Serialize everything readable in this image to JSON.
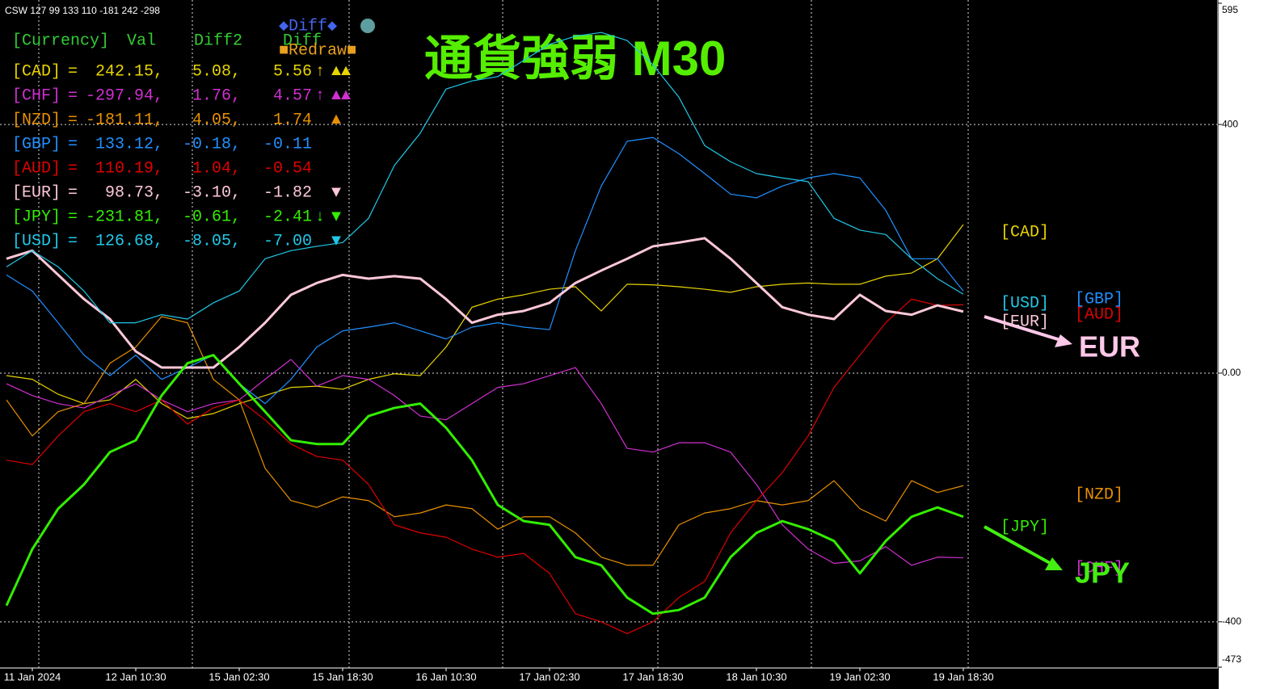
{
  "chart_data": {
    "type": "line",
    "info": "CSW 127 99 133 110 -181 242 -298",
    "title": "通貨強弱 M30",
    "categories": [
      null,
      "11 Jan 2024",
      null,
      null,
      null,
      "12 Jan 10:30",
      null,
      null,
      null,
      "15 Jan 02:30",
      null,
      null,
      null,
      "15 Jan 18:30",
      null,
      null,
      null,
      "16 Jan 10:30",
      null,
      null,
      null,
      "17 Jan 02:30",
      null,
      null,
      null,
      "17 Jan 18:30",
      null,
      null,
      null,
      "18 Jan 10:30",
      null,
      null,
      null,
      "19 Jan 02:30",
      null,
      null,
      null,
      "19 Jan 18:30"
    ],
    "ylim": [
      -473,
      595
    ],
    "yticks": [
      595,
      400,
      {
        "value": 0,
        "label": "0.00"
      },
      -400,
      -473
    ],
    "grid": true,
    "series": [
      {
        "name": "[CAD]",
        "color": "#e8d400",
        "values": [
          -4,
          -10,
          -34,
          -49,
          -43,
          -10,
          -49,
          -73,
          -65,
          -49,
          -36,
          -23,
          -21,
          -26,
          -10,
          -1,
          -4,
          42,
          106,
          119,
          126,
          135,
          139,
          100,
          143,
          142,
          139,
          135,
          130,
          139,
          143,
          145,
          143,
          143,
          156,
          161,
          184,
          239
        ]
      },
      {
        "name": "[CHF]",
        "color": "#d030d0",
        "values": [
          -17,
          -36,
          -49,
          -56,
          -36,
          -17,
          -43,
          -62,
          -49,
          -43,
          -10,
          22,
          -21,
          -4,
          -10,
          -36,
          -69,
          -75,
          -49,
          -23,
          -17,
          -4,
          9,
          -49,
          -121,
          -127,
          -112,
          -112,
          -127,
          -179,
          -244,
          -283,
          -306,
          -302,
          -279,
          -309,
          -296,
          -297
        ]
      },
      {
        "name": "[NZD]",
        "color": "#e89000",
        "values": [
          -43,
          -101,
          -62,
          -49,
          16,
          42,
          91,
          81,
          -10,
          -43,
          -153,
          -205,
          -216,
          -199,
          -205,
          -231,
          -225,
          -212,
          -218,
          -251,
          -231,
          -231,
          -257,
          -296,
          -309,
          -309,
          -244,
          -225,
          -218,
          -205,
          -212,
          -205,
          -173,
          -218,
          -238,
          -173,
          -192,
          -181
        ]
      },
      {
        "name": "[GBP]",
        "color": "#2090ff",
        "values": [
          158,
          132,
          81,
          29,
          -4,
          29,
          -10,
          9,
          29,
          -17,
          -49,
          -10,
          42,
          68,
          74,
          81,
          68,
          55,
          74,
          81,
          74,
          70,
          197,
          301,
          373,
          379,
          353,
          321,
          288,
          282,
          301,
          314,
          321,
          314,
          262,
          184,
          184,
          132
        ]
      },
      {
        "name": "[AUD]",
        "color": "#e00000",
        "values": [
          -140,
          -147,
          -101,
          -62,
          -49,
          -62,
          -43,
          -82,
          -56,
          -43,
          -75,
          -114,
          -134,
          -140,
          -179,
          -244,
          -257,
          -264,
          -283,
          -296,
          -290,
          -322,
          -387,
          -400,
          -419,
          -400,
          -361,
          -335,
          -257,
          -205,
          -160,
          -101,
          -23,
          29,
          81,
          119,
          109,
          110
        ]
      },
      {
        "name": "[EUR]",
        "color": "#ffc8d8",
        "values": [
          184,
          197,
          158,
          119,
          87,
          35,
          9,
          9,
          9,
          42,
          81,
          126,
          145,
          158,
          152,
          156,
          152,
          119,
          81,
          94,
          100,
          113,
          145,
          165,
          184,
          204,
          210,
          217,
          184,
          145,
          106,
          94,
          87,
          126,
          100,
          94,
          109,
          99
        ]
      },
      {
        "name": "[JPY]",
        "color": "#33ee00",
        "values": [
          -374,
          -283,
          -218,
          -179,
          -127,
          -108,
          -36,
          16,
          29,
          -17,
          -62,
          -108,
          -114,
          -114,
          -69,
          -56,
          -49,
          -88,
          -140,
          -212,
          -238,
          -244,
          -296,
          -309,
          -361,
          -387,
          -381,
          -361,
          -296,
          -257,
          -238,
          -251,
          -270,
          -322,
          -270,
          -231,
          -216,
          -231
        ]
      },
      {
        "name": "[USD]",
        "color": "#20c8e8",
        "values": [
          171,
          197,
          171,
          132,
          81,
          81,
          94,
          87,
          113,
          132,
          184,
          197,
          204,
          210,
          249,
          334,
          386,
          457,
          470,
          477,
          503,
          529,
          542,
          548,
          535,
          496,
          444,
          366,
          340,
          321,
          314,
          308,
          249,
          230,
          223,
          184,
          152,
          127
        ]
      }
    ],
    "annotations": [
      "EUR",
      "JPY"
    ]
  },
  "panel": {
    "header": [
      "[Currency]",
      "Val",
      "Diff2",
      "Diff"
    ],
    "eq": "=",
    "buttons": {
      "diff": "◆Diff◆",
      "redraw": "■Redraw■"
    },
    "rows": [
      {
        "val": "242.15,",
        "diff2": "5.08,",
        "diff": "5.56",
        "arrow": "↑",
        "tri": "▲▲"
      },
      {
        "val": "-297.94,",
        "diff2": "1.76,",
        "diff": "4.57",
        "arrow": "↑",
        "tri": "▲▲"
      },
      {
        "val": "-181.11,",
        "diff2": "4.05,",
        "diff": "1.74",
        "tri": "▲"
      },
      {
        "val": "133.12,",
        "diff2": "-0.18,",
        "diff": "-0.11"
      },
      {
        "val": "110.19,",
        "diff2": "1.04,",
        "diff": "-0.54"
      },
      {
        "val": "98.73,",
        "diff2": "-3.10,",
        "diff": "-1.82",
        "tri": "▼"
      },
      {
        "val": "-231.81,",
        "diff2": "-0.61,",
        "diff": "-2.41",
        "arrow": "↓",
        "tri": "▼"
      },
      {
        "val": "126.68,",
        "diff2": "-8.05,",
        "diff": "-7.00",
        "tri": "▼"
      }
    ]
  }
}
